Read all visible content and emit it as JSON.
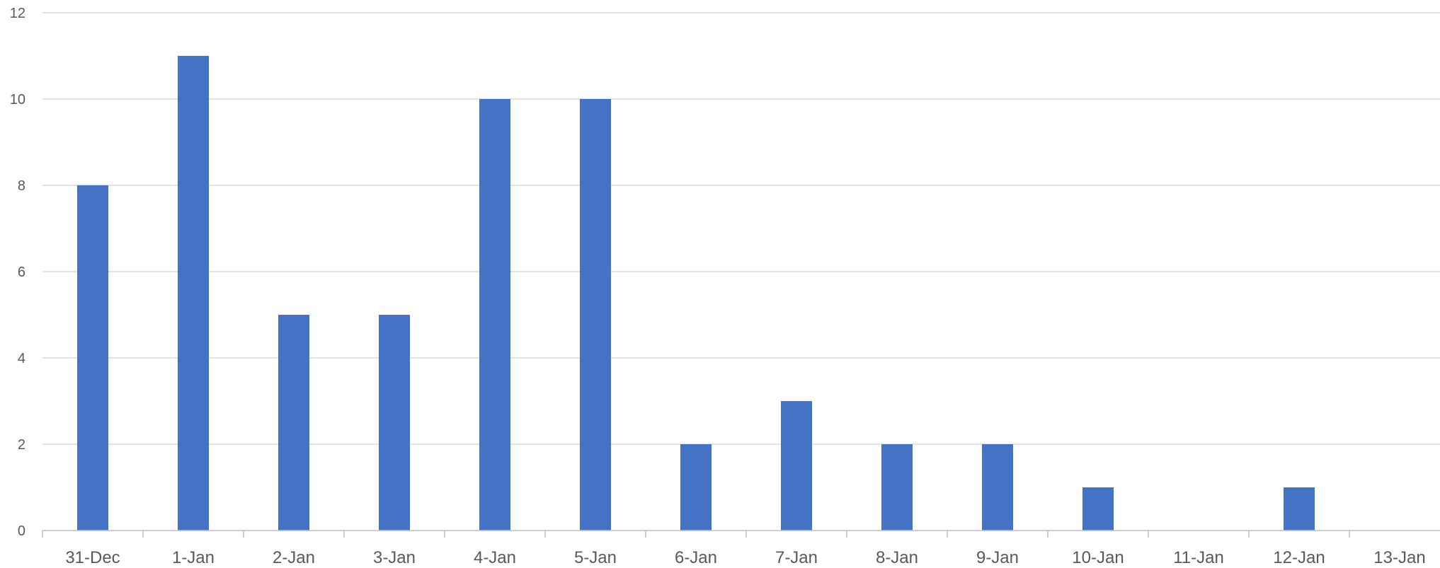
{
  "chart_data": {
    "type": "bar",
    "title": "",
    "xlabel": "",
    "ylabel": "",
    "categories": [
      "31-Dec",
      "1-Jan",
      "2-Jan",
      "3-Jan",
      "4-Jan",
      "5-Jan",
      "6-Jan",
      "7-Jan",
      "8-Jan",
      "9-Jan",
      "10-Jan",
      "11-Jan",
      "12-Jan",
      "13-Jan"
    ],
    "values": [
      8,
      11,
      5,
      5,
      10,
      10,
      2,
      3,
      2,
      2,
      1,
      0,
      1,
      0
    ],
    "ylim": [
      0,
      12
    ],
    "yticks": [
      "0",
      "2",
      "4",
      "6",
      "8",
      "10",
      "12"
    ],
    "grid": true,
    "legend": "none",
    "colors": {
      "bar": "#4472C4",
      "grid": "#D9D9D9",
      "axis": "#BFBFBF",
      "text": "#595959"
    }
  }
}
